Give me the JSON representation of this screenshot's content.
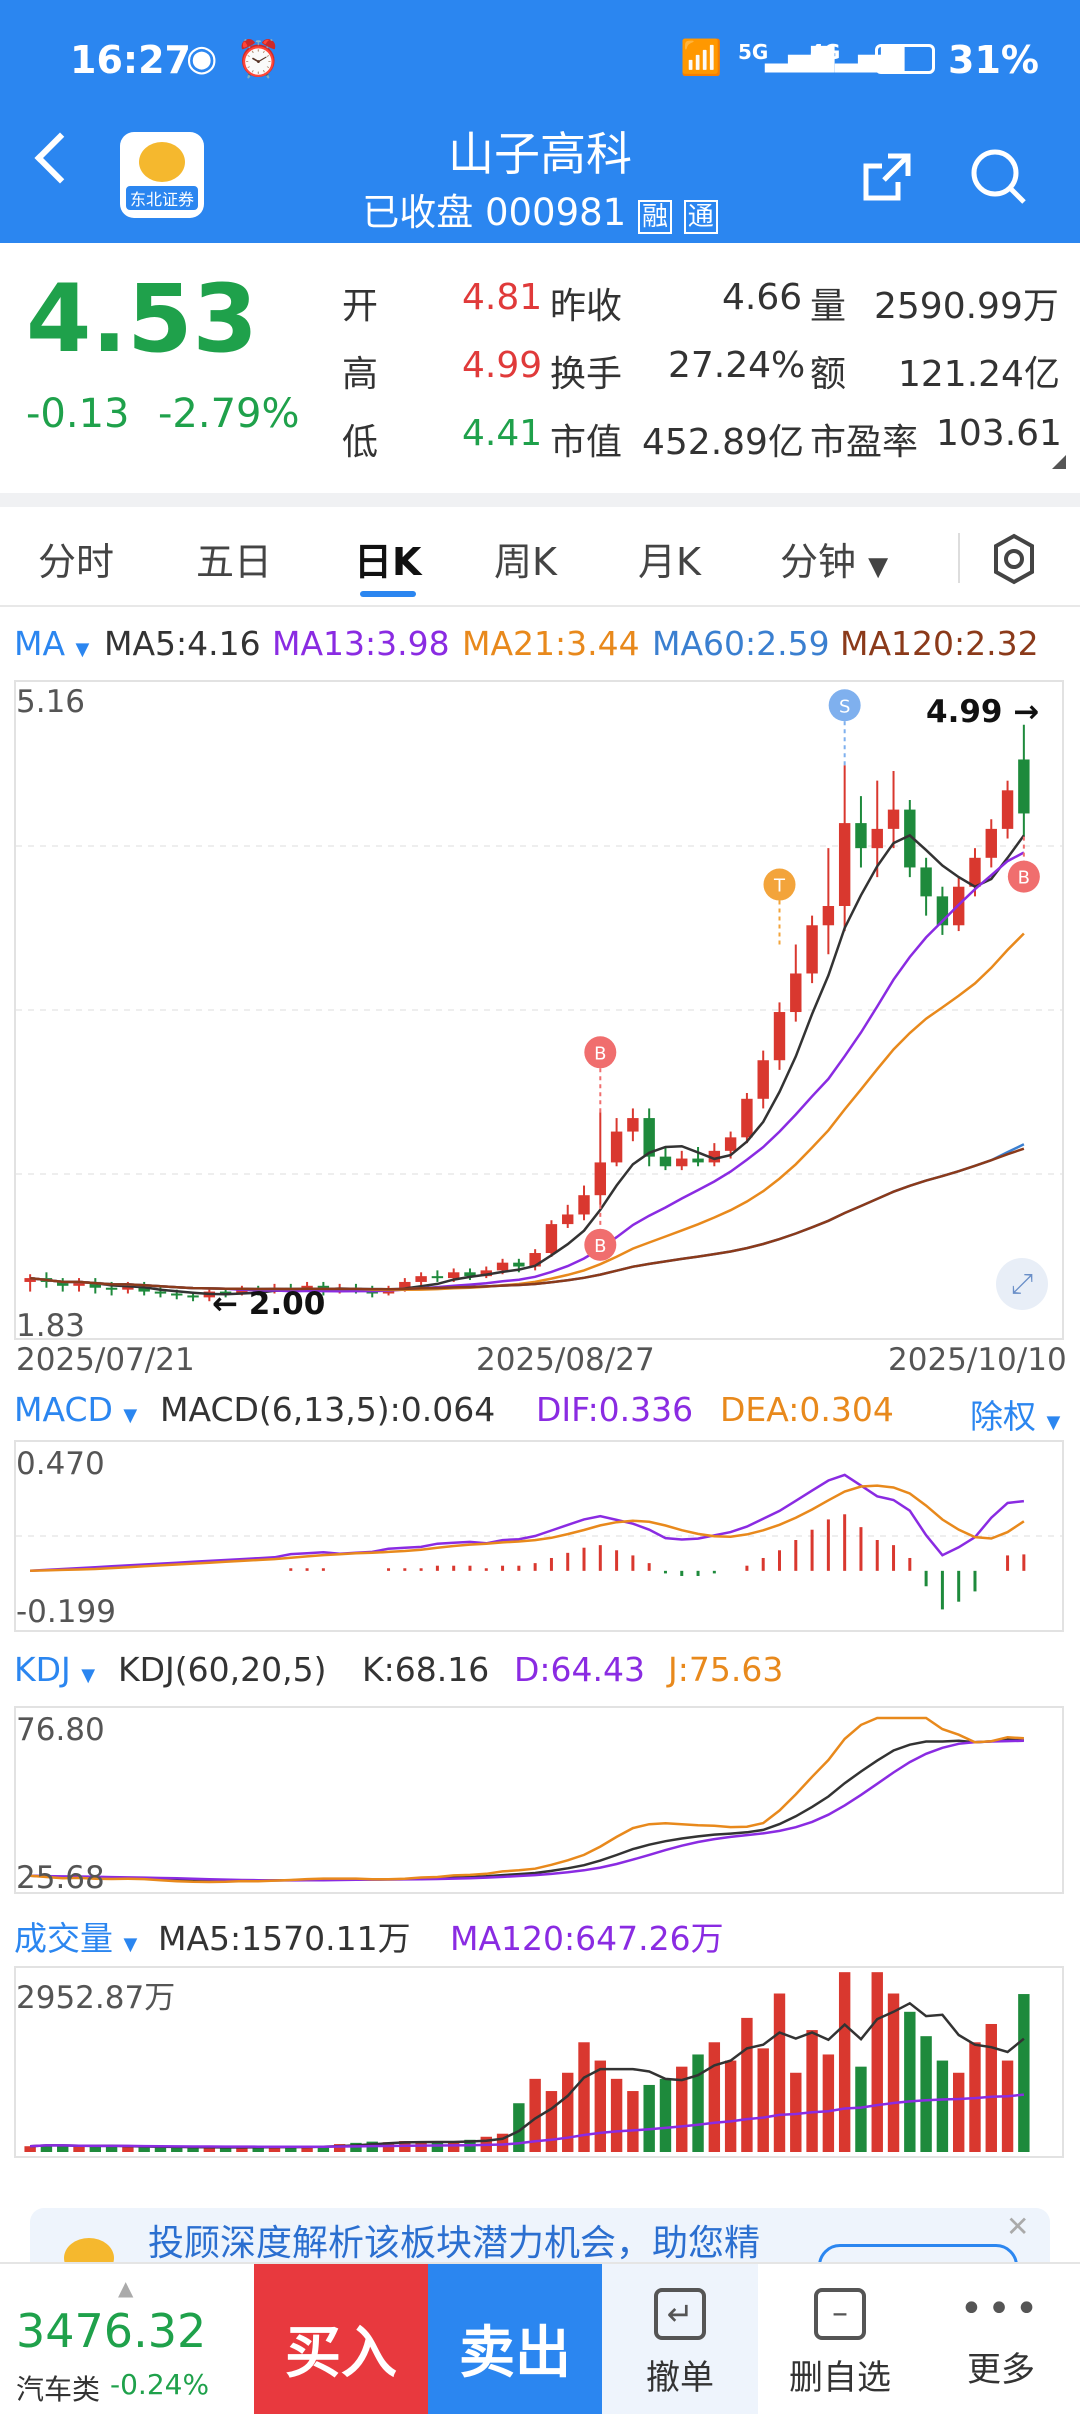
{
  "status_bar": {
    "time": "16:27",
    "network_1": "5G",
    "network_2": "4G",
    "battery": "31%"
  },
  "header": {
    "title": "山子高科",
    "subtitle": "已收盘 000981",
    "badge_1": "融",
    "badge_2": "通",
    "broker_logo": "东北证券"
  },
  "quote": {
    "price": "4.53",
    "change": "-0.13",
    "change_pct": "-2.79%",
    "rows": [
      {
        "l1": "开",
        "v1": "4.81",
        "l2": "昨收",
        "v2": "4.66",
        "l3": "量",
        "v3": "2590.99万"
      },
      {
        "l1": "高",
        "v1": "4.99",
        "l2": "换手",
        "v2": "27.24%",
        "l3": "额",
        "v3": "121.24亿"
      },
      {
        "l1": "低",
        "v1": "4.41",
        "l2": "市值",
        "v2": "452.89亿",
        "l3": "市盈率",
        "v3": "103.61"
      }
    ]
  },
  "tabs": [
    "分时",
    "五日",
    "日K",
    "周K",
    "月K",
    "分钟"
  ],
  "active_tab": "日K",
  "ma_legend": {
    "label": "MA",
    "ma5": "MA5:4.16",
    "ma13": "MA13:3.98",
    "ma21": "MA21:3.44",
    "ma60": "MA60:2.59",
    "ma120": "MA120:2.32"
  },
  "kline_axis": {
    "top": "5.16",
    "bottom": "1.83",
    "high_marker": "4.99",
    "low_marker": "2.00",
    "date_1": "2025/07/21",
    "date_2": "2025/08/27",
    "date_3": "2025/10/10"
  },
  "signals": {
    "sell": "S",
    "buy": "B",
    "t": "T"
  },
  "macd_legend": {
    "label": "MACD",
    "params": "MACD(6,13,5):0.064",
    "dif": "DIF:0.336",
    "dea": "DEA:0.304",
    "adjust": "除权"
  },
  "macd_axis": {
    "top": "0.470",
    "bottom": "-0.199"
  },
  "kdj_legend": {
    "label": "KDJ",
    "params": "KDJ(60,20,5)",
    "k": "K:68.16",
    "d": "D:64.43",
    "j": "J:75.63"
  },
  "kdj_axis": {
    "top": "76.80",
    "bottom": "25.68"
  },
  "vol_legend": {
    "label": "成交量",
    "ma5": "MA5:1570.11万",
    "ma120": "MA120:647.26万"
  },
  "vol_axis": {
    "top": "2952.87万"
  },
  "banner": {
    "text": "投顾深度解析该板块潜力机会，助您精"
  },
  "bottom_bar": {
    "index_value": "3476.32",
    "index_name": "汽车类",
    "index_change": "-0.24%",
    "buy": "买入",
    "sell": "卖出",
    "cancel": "撤单",
    "remove": "删自选",
    "more": "更多"
  },
  "chart_data": [
    {
      "type": "candlestick",
      "title": "日K",
      "x_labels": [
        "2025/07/21",
        "2025/08/27",
        "2025/10/10"
      ],
      "ylim": [
        1.83,
        5.16
      ],
      "candles": [
        [
          2.1,
          2.12,
          2.05,
          2.14
        ],
        [
          2.12,
          2.1,
          2.07,
          2.15
        ],
        [
          2.1,
          2.08,
          2.05,
          2.12
        ],
        [
          2.08,
          2.1,
          2.05,
          2.12
        ],
        [
          2.1,
          2.07,
          2.04,
          2.12
        ],
        [
          2.07,
          2.06,
          2.03,
          2.1
        ],
        [
          2.06,
          2.08,
          2.04,
          2.1
        ],
        [
          2.08,
          2.05,
          2.03,
          2.1
        ],
        [
          2.05,
          2.04,
          2.02,
          2.08
        ],
        [
          2.04,
          2.03,
          2.01,
          2.06
        ],
        [
          2.03,
          2.02,
          2.0,
          2.05
        ],
        [
          2.02,
          2.05,
          2.0,
          2.07
        ],
        [
          2.05,
          2.04,
          2.02,
          2.07
        ],
        [
          2.04,
          2.06,
          2.03,
          2.08
        ],
        [
          2.06,
          2.05,
          2.03,
          2.08
        ],
        [
          2.05,
          2.07,
          2.04,
          2.09
        ],
        [
          2.07,
          2.06,
          2.04,
          2.09
        ],
        [
          2.06,
          2.08,
          2.05,
          2.1
        ],
        [
          2.08,
          2.05,
          2.03,
          2.1
        ],
        [
          2.05,
          2.07,
          2.04,
          2.09
        ],
        [
          2.07,
          2.06,
          2.04,
          2.09
        ],
        [
          2.06,
          2.04,
          2.02,
          2.08
        ],
        [
          2.04,
          2.06,
          2.03,
          2.08
        ],
        [
          2.06,
          2.1,
          2.05,
          2.12
        ],
        [
          2.1,
          2.13,
          2.08,
          2.15
        ],
        [
          2.13,
          2.12,
          2.1,
          2.16
        ],
        [
          2.12,
          2.15,
          2.1,
          2.17
        ],
        [
          2.15,
          2.13,
          2.11,
          2.17
        ],
        [
          2.13,
          2.16,
          2.12,
          2.18
        ],
        [
          2.16,
          2.2,
          2.14,
          2.22
        ],
        [
          2.2,
          2.18,
          2.15,
          2.22
        ],
        [
          2.18,
          2.25,
          2.16,
          2.27
        ],
        [
          2.25,
          2.4,
          2.23,
          2.42
        ],
        [
          2.4,
          2.45,
          2.38,
          2.5
        ],
        [
          2.45,
          2.55,
          2.42,
          2.6
        ],
        [
          2.55,
          2.72,
          2.5,
          2.98
        ],
        [
          2.72,
          2.88,
          2.7,
          2.95
        ],
        [
          2.88,
          2.95,
          2.83,
          3.0
        ],
        [
          2.95,
          2.75,
          2.7,
          3.0
        ],
        [
          2.75,
          2.7,
          2.68,
          2.8
        ],
        [
          2.7,
          2.74,
          2.68,
          2.78
        ],
        [
          2.74,
          2.72,
          2.7,
          2.8
        ],
        [
          2.72,
          2.78,
          2.7,
          2.82
        ],
        [
          2.78,
          2.85,
          2.74,
          2.88
        ],
        [
          2.85,
          3.05,
          2.82,
          3.08
        ],
        [
          3.05,
          3.25,
          3.0,
          3.3
        ],
        [
          3.25,
          3.5,
          3.2,
          3.55
        ],
        [
          3.5,
          3.7,
          3.45,
          3.85
        ],
        [
          3.7,
          3.95,
          3.65,
          4.0
        ],
        [
          3.95,
          4.05,
          3.8,
          4.35
        ],
        [
          4.05,
          4.48,
          3.92,
          4.78
        ],
        [
          4.48,
          4.35,
          4.25,
          4.62
        ],
        [
          4.35,
          4.45,
          4.2,
          4.7
        ],
        [
          4.45,
          4.55,
          4.35,
          4.75
        ],
        [
          4.55,
          4.25,
          4.2,
          4.6
        ],
        [
          4.25,
          4.1,
          4.0,
          4.3
        ],
        [
          4.1,
          3.95,
          3.9,
          4.15
        ],
        [
          3.95,
          4.15,
          3.92,
          4.2
        ],
        [
          4.15,
          4.3,
          4.1,
          4.35
        ],
        [
          4.3,
          4.45,
          4.25,
          4.5
        ],
        [
          4.45,
          4.65,
          4.4,
          4.7
        ],
        [
          4.81,
          4.53,
          4.41,
          4.99
        ]
      ]
    },
    {
      "type": "bar",
      "title": "MACD",
      "ylim": [
        -0.199,
        0.47
      ],
      "values": [
        0.0,
        0.0,
        0.0,
        0.0,
        0.0,
        0.0,
        0.0,
        0.0,
        0.0,
        0.0,
        0.0,
        0.0,
        0.0,
        0.0,
        0.0,
        0.0,
        0.01,
        0.01,
        0.01,
        0.0,
        0.0,
        0.0,
        0.01,
        0.01,
        0.01,
        0.02,
        0.02,
        0.02,
        0.01,
        0.02,
        0.02,
        0.03,
        0.05,
        0.07,
        0.09,
        0.1,
        0.08,
        0.06,
        0.03,
        -0.01,
        -0.02,
        -0.02,
        -0.01,
        0.0,
        0.02,
        0.05,
        0.08,
        0.12,
        0.16,
        0.2,
        0.22,
        0.17,
        0.12,
        0.1,
        0.05,
        -0.06,
        -0.15,
        -0.12,
        -0.08,
        0.0,
        0.06,
        0.064
      ]
    },
    {
      "type": "bar",
      "title": "成交量",
      "ylim": [
        0,
        2952.87
      ],
      "values": [
        95,
        120,
        110,
        90,
        85,
        100,
        95,
        80,
        75,
        70,
        80,
        85,
        70,
        75,
        80,
        90,
        85,
        80,
        100,
        130,
        150,
        170,
        160,
        180,
        150,
        160,
        170,
        200,
        250,
        300,
        800,
        1200,
        1000,
        1300,
        1800,
        1500,
        1200,
        1000,
        1100,
        1200,
        1400,
        1600,
        1800,
        1500,
        2200,
        1700,
        2600,
        1300,
        2000,
        1600,
        2950,
        1400,
        2950,
        2600,
        2300,
        1900,
        1500,
        1300,
        1800,
        2100,
        1500,
        2590.99
      ]
    }
  ]
}
